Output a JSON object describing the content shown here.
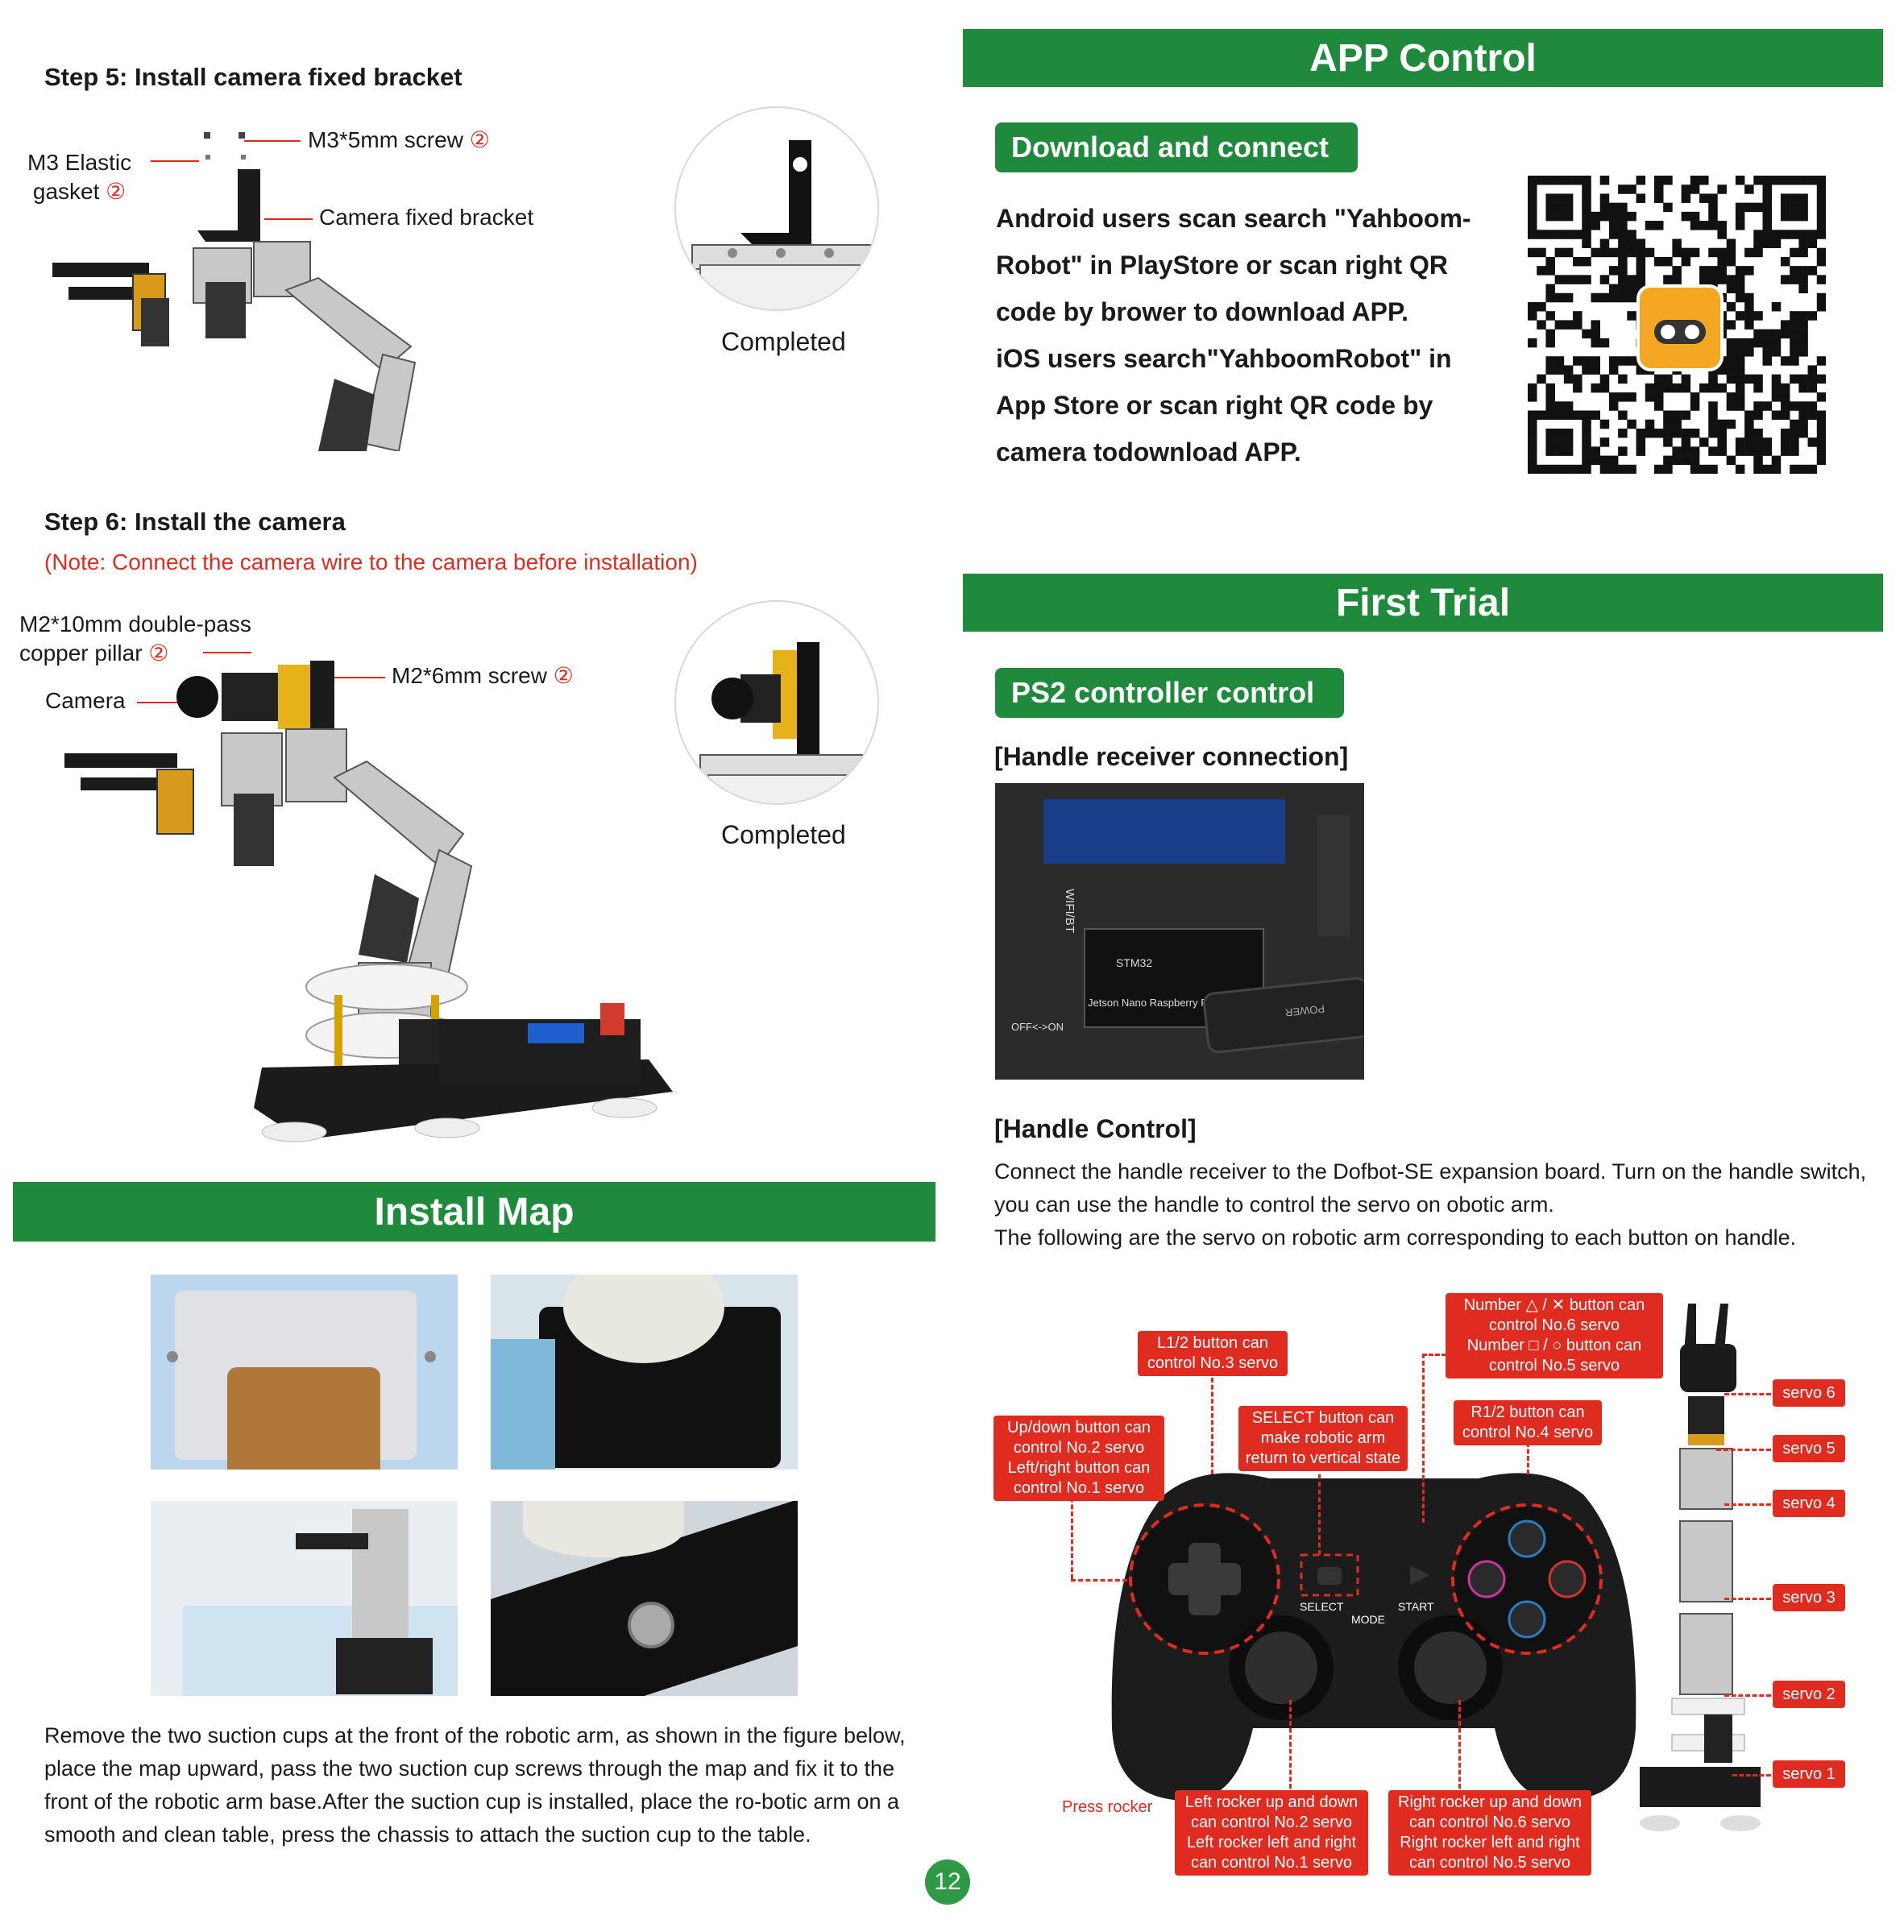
{
  "step5": {
    "title": "Step 5: Install camera fixed bracket",
    "label_screw": "M3*5mm screw",
    "label_gasket_line1": "M3 Elastic",
    "label_gasket_line2": "gasket",
    "label_bracket": "Camera fixed bracket",
    "qty_symbol": "②",
    "completed": "Completed"
  },
  "step6": {
    "title": "Step 6: Install the camera",
    "note": "(Note: Connect the camera wire to the camera before installation)",
    "label_pillar_line1": "M2*10mm double-pass",
    "label_pillar_line2": "copper pillar",
    "label_screw": "M2*6mm screw",
    "label_camera": "Camera",
    "qty_symbol": "②",
    "completed": "Completed"
  },
  "install_map": {
    "title": "Install Map",
    "description": "Remove the two suction cups at the front of the robotic arm, as shown in the figure below, place the map upward, pass the two suction cup screws through the map and fix it to the front of the robotic arm base.After the suction cup is installed, place the ro-botic arm on a smooth and clean table, press the chassis to attach the suction cup to the table."
  },
  "app_control": {
    "title": "APP Control",
    "subtitle": "Download and connect",
    "lines": [
      "Android users scan search \"Yahboom-",
      "Robot\" in PlayStore or scan right QR",
      "code by brower to download APP.",
      "iOS users search\"YahboomRobot\" in",
      "App Store or scan right QR code by",
      "camera todownload APP."
    ]
  },
  "first_trial": {
    "title": "First Trial",
    "subtitle": "PS2 controller control",
    "receiver_heading": "[Handle receiver connection]",
    "board_labels": {
      "wifi": "WIFI/BT",
      "stm32": "STM32",
      "jetson": "Jetson Nano",
      "rpi": "Raspberry Pi",
      "off_on": "OFF<->ON",
      "power": "POWER"
    },
    "control_heading": "[Handle Control]",
    "control_text_1": "Connect the handle receiver to the Dofbot-SE expansion board. Turn on the handle switch, you can use the handle to control the servo on obotic arm.",
    "control_text_2": "The following are the servo on robotic arm corresponding to each button on handle."
  },
  "controller": {
    "callouts": {
      "number_buttons_a": "Number",
      "number_buttons_a2": "button can control No.6 servo",
      "number_buttons_b": "Number",
      "number_buttons_b2": "button can control No.5 servo",
      "l12": "L1/2 button can control No.3 servo",
      "select": "SELECT button can make robotic arm return to vertical state",
      "r12": "R1/2 button can control No.4 servo",
      "updown": "Up/down button can control No.2 servo Left/right button can control No.1 servo",
      "left_rocker": "Left rocker up and down can control No.2 servo Left rocker left and right can control No.1 servo",
      "right_rocker": "Right rocker up and down can control No.6 servo Right rocker left and right can control No.5 servo",
      "press_rocker": "Press rocker"
    },
    "button_labels": {
      "select": "SELECT",
      "start": "START",
      "mode": "MODE"
    },
    "servos": [
      "servo 6",
      "servo 5",
      "servo 4",
      "servo 3",
      "servo 2",
      "servo 1"
    ]
  },
  "page_number": "12",
  "colors": {
    "green": "#1f8a3c",
    "red": "#e02b20"
  }
}
